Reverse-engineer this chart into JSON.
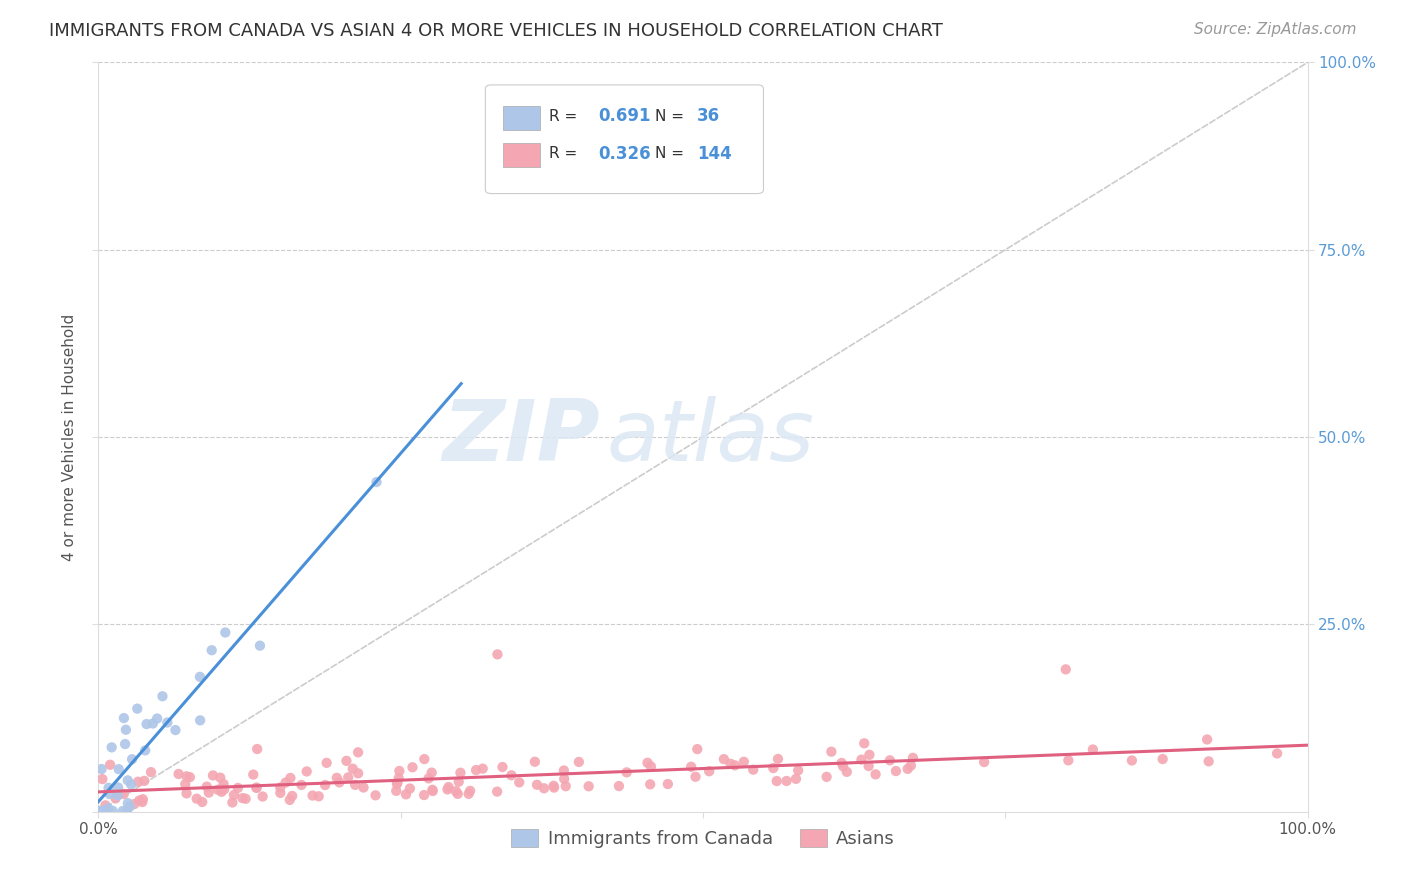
{
  "title": "IMMIGRANTS FROM CANADA VS ASIAN 4 OR MORE VEHICLES IN HOUSEHOLD CORRELATION CHART",
  "source": "Source: ZipAtlas.com",
  "ylabel": "4 or more Vehicles in Household",
  "legend_label1": "Immigrants from Canada",
  "legend_label2": "Asians",
  "r1": 0.691,
  "n1": 36,
  "r2": 0.326,
  "n2": 144,
  "color_canada": "#aec6e8",
  "color_asia": "#f4a7b2",
  "line_color_canada": "#4a90d9",
  "line_color_asia": "#e06080",
  "diag_color": "#cccccc",
  "background_color": "#ffffff",
  "watermark_zip": "ZIP",
  "watermark_atlas": "atlas",
  "title_fontsize": 13,
  "source_fontsize": 11,
  "label_fontsize": 11,
  "tick_fontsize": 11,
  "legend_fontsize": 13,
  "right_tick_color": "#5b9bd5",
  "grid_color": "#cccccc"
}
